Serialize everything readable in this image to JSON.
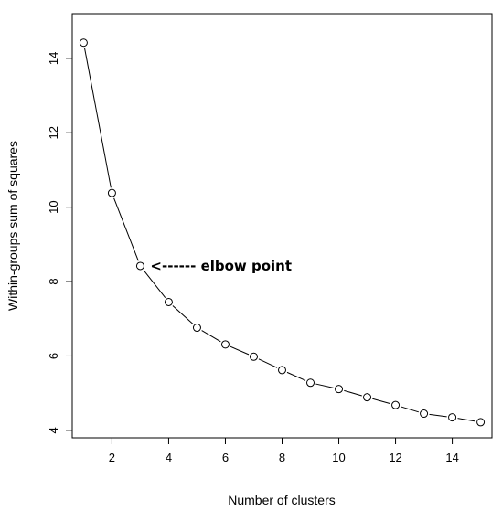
{
  "chart_data": {
    "type": "line",
    "title": "",
    "xlabel": "Number of clusters",
    "ylabel": "Within-groups sum of squares",
    "x": [
      1,
      2,
      3,
      4,
      5,
      6,
      7,
      8,
      9,
      10,
      11,
      12,
      13,
      14,
      15
    ],
    "series": [
      {
        "values": [
          14.42,
          10.38,
          8.42,
          7.45,
          6.76,
          6.31,
          5.98,
          5.62,
          5.28,
          5.11,
          4.89,
          4.68,
          4.45,
          4.35,
          4.22
        ]
      }
    ],
    "xlim": [
      0.6,
      15.4
    ],
    "ylim": [
      3.8,
      15.2
    ],
    "xticks": [
      2,
      4,
      6,
      8,
      10,
      12,
      14
    ],
    "yticks": [
      4,
      6,
      8,
      10,
      12,
      14
    ],
    "grid": false,
    "marker": "open-circle",
    "annotation": {
      "text": "<------ elbow point",
      "x": 3,
      "y": 8.42
    }
  }
}
